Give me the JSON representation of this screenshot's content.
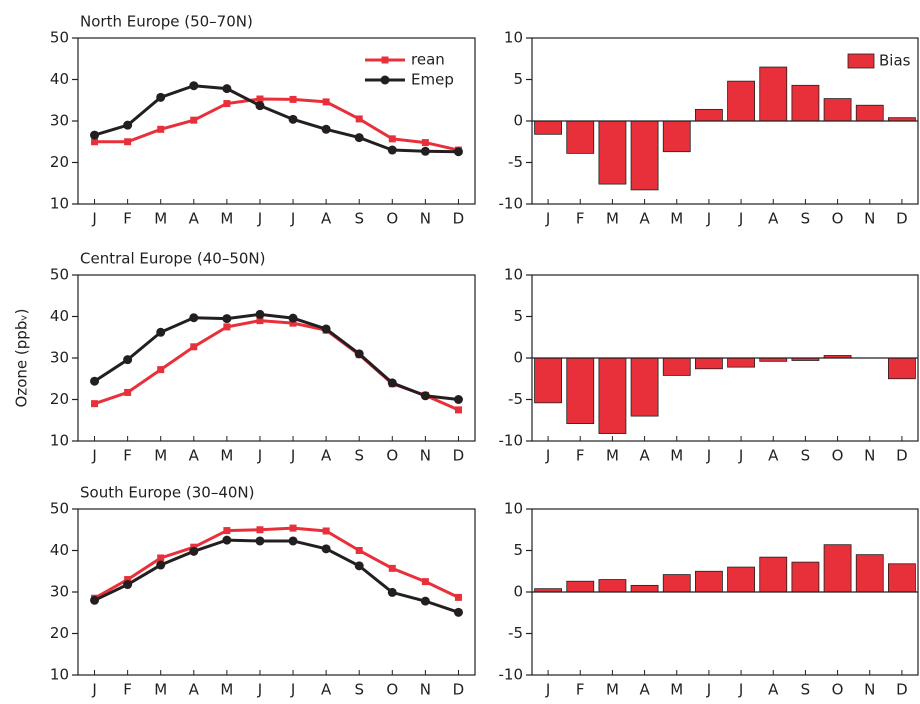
{
  "chart_data": [
    {
      "type": "line",
      "title": "North Europe (50–70N)",
      "categories": [
        "J",
        "F",
        "M",
        "A",
        "M",
        "J",
        "J",
        "A",
        "S",
        "O",
        "N",
        "D"
      ],
      "series": [
        {
          "name": "rean",
          "color": "#e8303a",
          "marker": "square",
          "values": [
            25,
            25,
            28,
            30.2,
            34.2,
            35.3,
            35.2,
            34.6,
            30.5,
            25.7,
            24.8,
            23
          ]
        },
        {
          "name": "Emep",
          "color": "#231f20",
          "marker": "circle",
          "values": [
            26.6,
            29,
            35.7,
            38.5,
            37.8,
            33.7,
            30.4,
            28,
            26,
            23,
            22.7,
            22.6
          ]
        }
      ],
      "ylim": [
        10,
        50
      ],
      "yticks": [
        10,
        20,
        30,
        40,
        50
      ],
      "legend": "upper right"
    },
    {
      "type": "bar",
      "categories": [
        "J",
        "F",
        "M",
        "A",
        "M",
        "J",
        "J",
        "A",
        "S",
        "O",
        "N",
        "D"
      ],
      "series": [
        {
          "name": "Bias",
          "color": "#e8303a",
          "values": [
            -1.6,
            -3.9,
            -7.6,
            -8.3,
            -3.7,
            1.4,
            4.8,
            6.5,
            4.3,
            2.7,
            1.9,
            0.4
          ]
        }
      ],
      "ylim": [
        -10,
        10
      ],
      "yticks": [
        -10,
        -5,
        0,
        5,
        10
      ],
      "legend": "upper right"
    },
    {
      "type": "line",
      "title": "Central Europe (40–50N)",
      "ylabel": "Ozone (ppbᵥ)",
      "categories": [
        "J",
        "F",
        "M",
        "A",
        "M",
        "J",
        "J",
        "A",
        "S",
        "O",
        "N",
        "D"
      ],
      "series": [
        {
          "color": "#e8303a",
          "marker": "square",
          "values": [
            19,
            21.7,
            27.2,
            32.7,
            37.5,
            39,
            38.4,
            36.7,
            30.8,
            23.8,
            21,
            17.5
          ]
        },
        {
          "color": "#231f20",
          "marker": "circle",
          "values": [
            24.4,
            29.6,
            36.2,
            39.7,
            39.5,
            40.5,
            39.6,
            37,
            31,
            24,
            20.9,
            20
          ]
        }
      ],
      "ylim": [
        10,
        50
      ],
      "yticks": [
        10,
        20,
        30,
        40,
        50
      ]
    },
    {
      "type": "bar",
      "categories": [
        "J",
        "F",
        "M",
        "A",
        "M",
        "J",
        "J",
        "A",
        "S",
        "O",
        "N",
        "D"
      ],
      "series": [
        {
          "color": "#e8303a",
          "values": [
            -5.4,
            -7.9,
            -9.1,
            -7,
            -2.1,
            -1.3,
            -1.1,
            -0.4,
            -0.3,
            0.3,
            0,
            -2.5
          ]
        }
      ],
      "ylim": [
        -10,
        10
      ],
      "yticks": [
        -10,
        -5,
        0,
        5,
        10
      ]
    },
    {
      "type": "line",
      "title": "South Europe (30–40N)",
      "categories": [
        "J",
        "F",
        "M",
        "A",
        "M",
        "J",
        "J",
        "A",
        "S",
        "O",
        "N",
        "D"
      ],
      "series": [
        {
          "color": "#e8303a",
          "marker": "square",
          "values": [
            28.5,
            33,
            38.2,
            40.8,
            44.8,
            45,
            45.4,
            44.7,
            40,
            35.7,
            32.5,
            28.7
          ]
        },
        {
          "color": "#231f20",
          "marker": "circle",
          "values": [
            28,
            31.8,
            36.5,
            39.8,
            42.5,
            42.3,
            42.3,
            40.4,
            36.3,
            29.9,
            27.8,
            25.1
          ]
        }
      ],
      "ylim": [
        10,
        50
      ],
      "yticks": [
        10,
        20,
        30,
        40,
        50
      ]
    },
    {
      "type": "bar",
      "categories": [
        "J",
        "F",
        "M",
        "A",
        "M",
        "J",
        "J",
        "A",
        "S",
        "O",
        "N",
        "D"
      ],
      "series": [
        {
          "color": "#e8303a",
          "values": [
            0.4,
            1.3,
            1.5,
            0.8,
            2.1,
            2.5,
            3,
            4.2,
            3.6,
            5.7,
            4.5,
            3.4
          ]
        }
      ],
      "ylim": [
        -10,
        10
      ],
      "yticks": [
        -10,
        -5,
        0,
        5,
        10
      ]
    }
  ]
}
